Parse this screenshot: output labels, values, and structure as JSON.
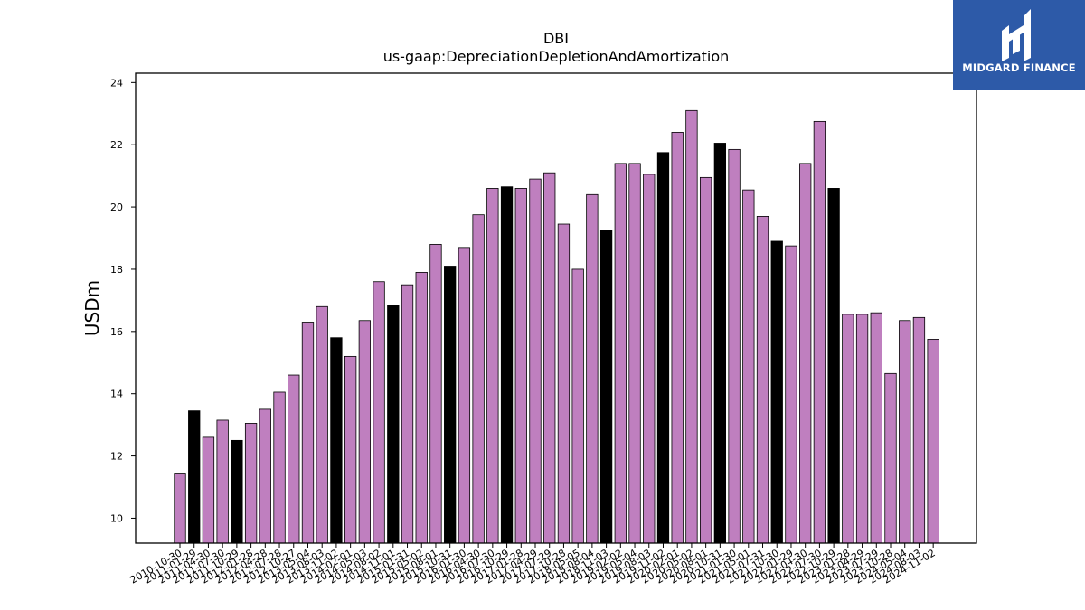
{
  "chart_data": {
    "type": "bar",
    "title": "DBI",
    "subtitle": "us-gaap:DepreciationDepletionAndAmortization",
    "ylabel": "USDm",
    "xlabel": "",
    "ylim": [
      9.2,
      24.3
    ],
    "yticks": [
      10,
      12,
      14,
      16,
      18,
      20,
      22,
      24
    ],
    "grid": false,
    "categories": [
      "2010-10-30",
      "2011-01-29",
      "2011-04-30",
      "2011-07-30",
      "2011-10-29",
      "2012-01-28",
      "2012-04-28",
      "2012-07-28",
      "2012-10-27",
      "2013-05-04",
      "2013-08-03",
      "2013-11-02",
      "2014-02-01",
      "2014-05-03",
      "2014-08-02",
      "2014-11-01",
      "2015-01-31",
      "2015-05-02",
      "2015-08-01",
      "2015-10-31",
      "2016-01-30",
      "2016-04-30",
      "2016-07-30",
      "2016-10-29",
      "2017-01-28",
      "2017-04-29",
      "2017-07-29",
      "2017-10-28",
      "2018-05-05",
      "2018-08-04",
      "2018-11-03",
      "2019-02-02",
      "2019-05-04",
      "2019-08-03",
      "2019-11-02",
      "2020-02-01",
      "2020-05-02",
      "2020-08-01",
      "2020-10-31",
      "2021-01-30",
      "2021-05-01",
      "2021-07-31",
      "2021-10-30",
      "2022-01-29",
      "2022-04-30",
      "2022-07-30",
      "2022-10-29",
      "2023-01-28",
      "2023-04-29",
      "2023-07-29",
      "2023-10-28",
      "2024-05-04",
      "2024-08-03",
      "2024-11-02"
    ],
    "values": [
      11.45,
      13.45,
      12.6,
      13.15,
      12.5,
      13.05,
      13.5,
      14.05,
      14.6,
      16.3,
      16.8,
      15.8,
      15.2,
      16.35,
      17.6,
      16.85,
      17.5,
      17.9,
      18.8,
      18.1,
      18.7,
      19.75,
      20.6,
      20.65,
      20.6,
      20.9,
      21.1,
      19.45,
      18.0,
      20.4,
      19.25,
      21.4,
      21.4,
      21.05,
      21.75,
      22.4,
      23.1,
      20.95,
      22.05,
      21.85,
      20.55,
      19.7,
      18.9,
      18.75,
      21.4,
      22.75,
      20.6,
      16.55,
      16.55,
      16.6,
      14.65,
      16.35,
      16.45,
      15.75
    ],
    "colors": {
      "default": "#bf7fbf",
      "highlight": "#000000",
      "edge": "#000000"
    },
    "highlight_categories": [
      "2011-01-29",
      "2011-10-29",
      "2013-11-02",
      "2014-11-01",
      "2015-10-31",
      "2016-10-29",
      "2018-11-03",
      "2019-11-02",
      "2020-10-31",
      "2021-10-30",
      "2022-10-29"
    ]
  },
  "logo": {
    "text": "MIDGARD FINANCE",
    "background": "#2d5aa8"
  }
}
